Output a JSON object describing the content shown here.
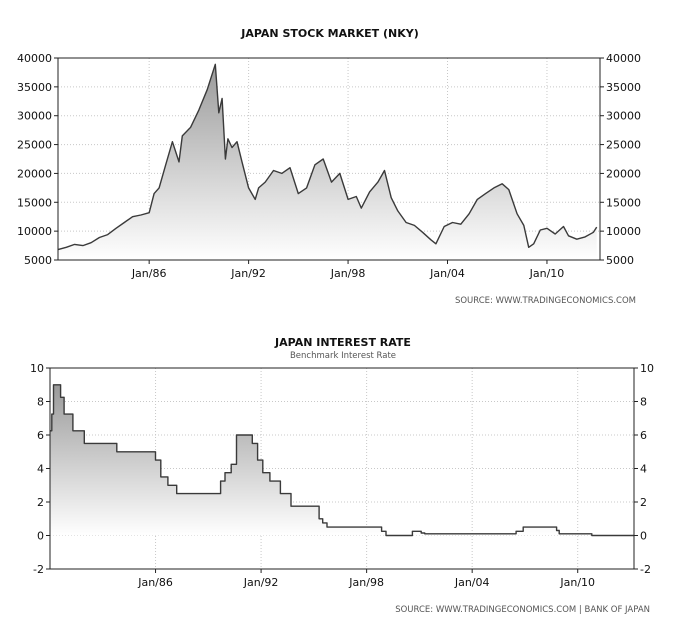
{
  "chart_data": [
    {
      "type": "area",
      "title": "JAPAN STOCK MARKET (NKY)",
      "subtitle": "",
      "source": "SOURCE:  WWW.TRADINGECONOMICS.COM",
      "ylim": [
        5000,
        40000
      ],
      "yticks": [
        5000,
        10000,
        15000,
        20000,
        25000,
        30000,
        35000,
        40000
      ],
      "xlim": [
        1980.5,
        2013.2
      ],
      "xticks": [
        {
          "value": 1986,
          "label": "Jan/86"
        },
        {
          "value": 1992,
          "label": "Jan/92"
        },
        {
          "value": 1998,
          "label": "Jan/98"
        },
        {
          "value": 2004,
          "label": "Jan/04"
        },
        {
          "value": 2010,
          "label": "Jan/10"
        }
      ],
      "grid": true,
      "colors": {
        "line": "#3a3a3a",
        "fill_top": "#9a9a9a",
        "fill_bottom": "#ffffff"
      },
      "series": [
        {
          "x": [
            1980.5,
            1981.0,
            1981.5,
            1982.0,
            1982.5,
            1983.0,
            1983.5,
            1984.0,
            1984.5,
            1985.0,
            1985.5,
            1986.0,
            1986.3,
            1986.6,
            1987.0,
            1987.4,
            1987.8,
            1988.0,
            1988.5,
            1989.0,
            1989.5,
            1989.99,
            1990.2,
            1990.4,
            1990.6,
            1990.75,
            1991.0,
            1991.3,
            1991.6,
            1992.0,
            1992.4,
            1992.6,
            1993.0,
            1993.5,
            1994.0,
            1994.5,
            1995.0,
            1995.5,
            1996.0,
            1996.5,
            1997.0,
            1997.5,
            1998.0,
            1998.5,
            1998.8,
            1999.3,
            1999.8,
            2000.2,
            2000.6,
            2001.0,
            2001.5,
            2002.0,
            2002.5,
            2003.0,
            2003.3,
            2003.8,
            2004.3,
            2004.8,
            2005.3,
            2005.8,
            2006.3,
            2006.8,
            2007.3,
            2007.7,
            2008.2,
            2008.6,
            2008.9,
            2009.2,
            2009.6,
            2010.0,
            2010.5,
            2011.0,
            2011.3,
            2011.8,
            2012.3,
            2012.8,
            2013.0
          ],
          "y": [
            6800,
            7200,
            7700,
            7500,
            8000,
            8900,
            9400,
            10500,
            11500,
            12500,
            12800,
            13200,
            16500,
            17500,
            21500,
            25500,
            22000,
            26500,
            28000,
            31000,
            34500,
            38900,
            30500,
            33000,
            22500,
            26000,
            24500,
            25500,
            22000,
            17500,
            15500,
            17500,
            18500,
            20500,
            20000,
            21000,
            16500,
            17500,
            21500,
            22500,
            18500,
            20000,
            15500,
            16000,
            14000,
            16800,
            18500,
            20500,
            15800,
            13500,
            11500,
            11000,
            9800,
            8500,
            7800,
            10800,
            11500,
            11200,
            13000,
            15500,
            16500,
            17500,
            18200,
            17200,
            13000,
            11000,
            7200,
            7800,
            10200,
            10500,
            9500,
            10800,
            9200,
            8600,
            9000,
            9800,
            10700
          ]
        }
      ]
    },
    {
      "type": "area",
      "title": "JAPAN INTEREST RATE",
      "subtitle": "Benchmark Interest Rate",
      "source": "SOURCE:  WWW.TRADINGECONOMICS.COM  |  BANK  OF  JAPAN",
      "ylim": [
        -2,
        10
      ],
      "yticks": [
        -2,
        0,
        2,
        4,
        6,
        8,
        10
      ],
      "xlim": [
        1980.0,
        2013.2
      ],
      "xticks": [
        {
          "value": 1986,
          "label": "Jan/86"
        },
        {
          "value": 1992,
          "label": "Jan/92"
        },
        {
          "value": 1998,
          "label": "Jan/98"
        },
        {
          "value": 2004,
          "label": "Jan/04"
        },
        {
          "value": 2010,
          "label": "Jan/10"
        }
      ],
      "grid": true,
      "step": true,
      "colors": {
        "line": "#3a3a3a",
        "fill_top": "#9a9a9a",
        "fill_bottom": "#ffffff"
      },
      "series": [
        {
          "x": [
            1980.0,
            1980.1,
            1980.2,
            1980.45,
            1980.6,
            1980.8,
            1981.3,
            1981.95,
            1983.8,
            1986.0,
            1986.3,
            1986.7,
            1987.2,
            1989.4,
            1989.7,
            1989.95,
            1990.3,
            1990.6,
            1991.5,
            1991.8,
            1992.1,
            1992.5,
            1993.1,
            1993.7,
            1995.3,
            1995.5,
            1995.75,
            1998.7,
            1998.85,
            1999.1,
            2000.6,
            2001.1,
            2001.3,
            2001.5,
            2006.5,
            2006.9,
            2007.4,
            2008.8,
            2008.95,
            2010.5,
            2010.8,
            2013.2
          ],
          "y": [
            6.25,
            7.25,
            9.0,
            9.0,
            8.25,
            7.25,
            6.25,
            5.5,
            5.0,
            4.5,
            3.5,
            3.0,
            2.5,
            2.5,
            3.25,
            3.75,
            4.25,
            6.0,
            5.5,
            4.5,
            3.75,
            3.25,
            2.5,
            1.75,
            1.0,
            0.75,
            0.5,
            0.5,
            0.25,
            0.0,
            0.25,
            0.15,
            0.1,
            0.1,
            0.25,
            0.5,
            0.5,
            0.3,
            0.1,
            0.1,
            0.0,
            0.0
          ]
        }
      ]
    }
  ]
}
